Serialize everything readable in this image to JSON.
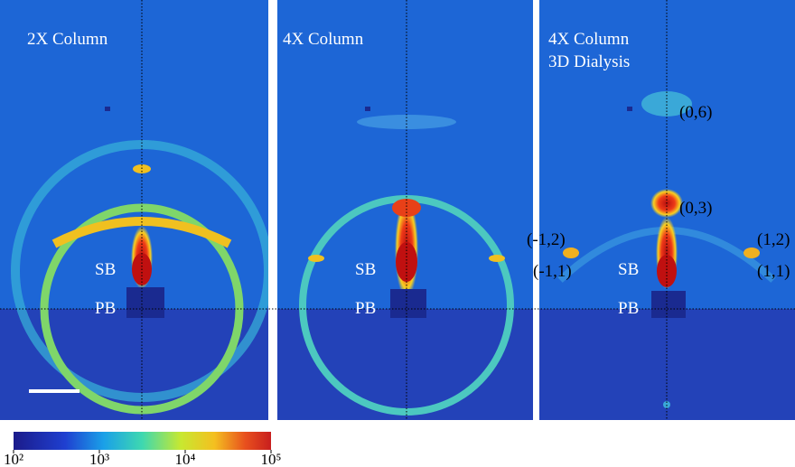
{
  "panels": [
    {
      "title": "2X Column",
      "sb": "SB",
      "pb": "PB"
    },
    {
      "title": "4X Column",
      "sb": "SB",
      "pb": "PB"
    },
    {
      "title": "4X Column",
      "subtitle": "3D Dialysis",
      "sb": "SB",
      "pb": "PB",
      "indices": [
        "(0,6)",
        "(0,3)",
        "(-1,2)",
        "(-1,1)",
        "(1,2)",
        "(1,1)"
      ]
    }
  ],
  "colorbar": {
    "scale": "log",
    "range": [
      100,
      100000
    ],
    "ticks": [
      {
        "value": 100,
        "label": "10²"
      },
      {
        "value": 1000,
        "label": "10³"
      },
      {
        "value": 10000,
        "label": "10⁴"
      },
      {
        "value": 100000,
        "label": "10⁵"
      }
    ]
  }
}
